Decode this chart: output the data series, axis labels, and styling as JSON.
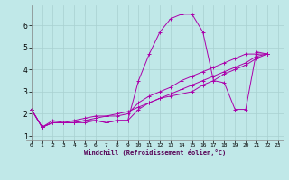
{
  "xlabel": "Windchill (Refroidissement éolien,°C)",
  "background_color": "#c0e8e8",
  "grid_color": "#a8d0d0",
  "line_color": "#aa00aa",
  "xlim": [
    -0.5,
    23.5
  ],
  "ylim": [
    0.8,
    6.9
  ],
  "yticks": [
    1,
    2,
    3,
    4,
    5,
    6
  ],
  "xticks": [
    0,
    1,
    2,
    3,
    4,
    5,
    6,
    7,
    8,
    9,
    10,
    11,
    12,
    13,
    14,
    15,
    16,
    17,
    18,
    19,
    20,
    21,
    22,
    23
  ],
  "series": [
    [
      2.2,
      1.4,
      1.7,
      1.6,
      1.6,
      1.6,
      1.7,
      1.6,
      1.7,
      1.7,
      3.5,
      4.7,
      5.7,
      6.3,
      6.5,
      6.5,
      5.7,
      3.5,
      3.4,
      2.2,
      2.2,
      4.8,
      4.7
    ],
    [
      2.2,
      1.4,
      1.6,
      1.6,
      1.6,
      1.7,
      1.7,
      1.6,
      1.7,
      1.7,
      2.2,
      2.5,
      2.7,
      2.9,
      3.1,
      3.3,
      3.5,
      3.7,
      3.9,
      4.1,
      4.3,
      4.6,
      4.7
    ],
    [
      2.2,
      1.4,
      1.6,
      1.6,
      1.6,
      1.7,
      1.8,
      1.9,
      1.9,
      2.0,
      2.5,
      2.8,
      3.0,
      3.2,
      3.5,
      3.7,
      3.9,
      4.1,
      4.3,
      4.5,
      4.7,
      4.7,
      4.7
    ],
    [
      2.2,
      1.4,
      1.6,
      1.6,
      1.7,
      1.8,
      1.9,
      1.9,
      2.0,
      2.1,
      2.3,
      2.5,
      2.7,
      2.8,
      2.9,
      3.0,
      3.3,
      3.5,
      3.8,
      4.0,
      4.2,
      4.5,
      4.7
    ]
  ]
}
